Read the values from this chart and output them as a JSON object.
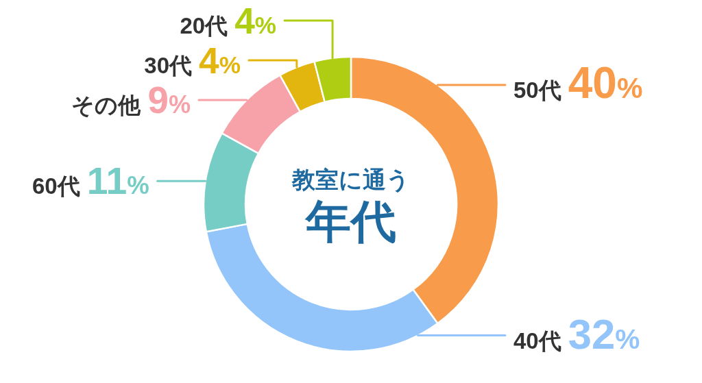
{
  "chart_data": {
    "type": "donut",
    "title": "教室に通う",
    "subtitle": "年代",
    "categories": [
      "50代",
      "40代",
      "60代",
      "その他",
      "30代",
      "20代"
    ],
    "values": [
      40,
      32,
      11,
      9,
      4,
      4
    ],
    "colors": [
      "#f89b4a",
      "#93c5fa",
      "#76cdc6",
      "#f7a1a8",
      "#e3b50f",
      "#afcd12"
    ],
    "value_labels": [
      "40%",
      "32%",
      "11%",
      "9%",
      "4%",
      "4%"
    ]
  }
}
